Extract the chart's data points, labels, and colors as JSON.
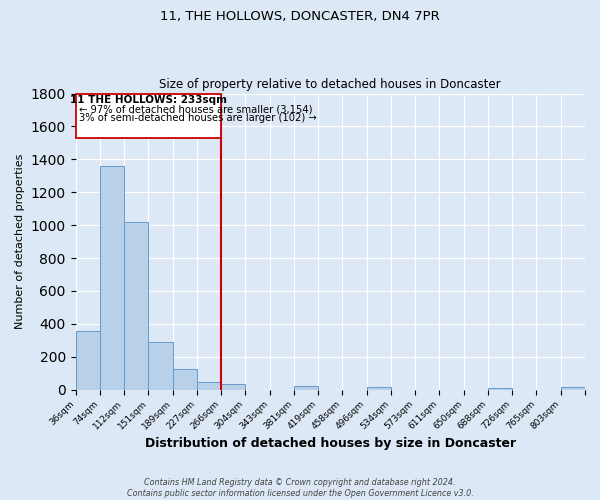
{
  "title": "11, THE HOLLOWS, DONCASTER, DN4 7PR",
  "subtitle": "Size of property relative to detached houses in Doncaster",
  "xlabel": "Distribution of detached houses by size in Doncaster",
  "ylabel": "Number of detached properties",
  "bin_labels": [
    "36sqm",
    "74sqm",
    "112sqm",
    "151sqm",
    "189sqm",
    "227sqm",
    "266sqm",
    "304sqm",
    "343sqm",
    "381sqm",
    "419sqm",
    "458sqm",
    "496sqm",
    "534sqm",
    "573sqm",
    "611sqm",
    "650sqm",
    "688sqm",
    "726sqm",
    "765sqm",
    "803sqm"
  ],
  "bar_heights": [
    355,
    1360,
    1020,
    290,
    128,
    45,
    35,
    0,
    0,
    20,
    0,
    0,
    18,
    0,
    0,
    0,
    0,
    12,
    0,
    0,
    18
  ],
  "bar_color": "#b8d0e8",
  "bar_edgecolor": "#6699cc",
  "vline_x_idx": 6,
  "vline_color": "#cc0000",
  "annotation_title": "11 THE HOLLOWS: 233sqm",
  "annotation_line1": "← 97% of detached houses are smaller (3,154)",
  "annotation_line2": "3% of semi-detached houses are larger (102) →",
  "annotation_box_edgecolor": "#cc0000",
  "ylim": [
    0,
    1800
  ],
  "yticks": [
    0,
    200,
    400,
    600,
    800,
    1000,
    1200,
    1400,
    1600,
    1800
  ],
  "footer_line1": "Contains HM Land Registry data © Crown copyright and database right 2024.",
  "footer_line2": "Contains public sector information licensed under the Open Government Licence v3.0.",
  "bg_color": "#dce8f5",
  "plot_bg_color": "#dce8f5"
}
